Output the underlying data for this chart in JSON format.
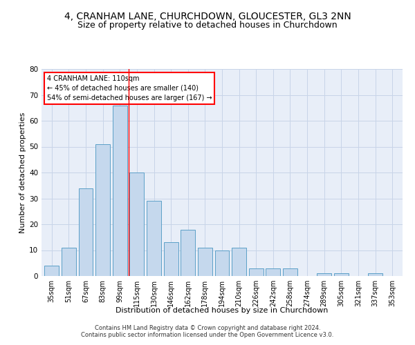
{
  "title": "4, CRANHAM LANE, CHURCHDOWN, GLOUCESTER, GL3 2NN",
  "subtitle": "Size of property relative to detached houses in Churchdown",
  "xlabel": "Distribution of detached houses by size in Churchdown",
  "ylabel": "Number of detached properties",
  "categories": [
    "35sqm",
    "51sqm",
    "67sqm",
    "83sqm",
    "99sqm",
    "115sqm",
    "130sqm",
    "146sqm",
    "162sqm",
    "178sqm",
    "194sqm",
    "210sqm",
    "226sqm",
    "242sqm",
    "258sqm",
    "274sqm",
    "289sqm",
    "305sqm",
    "321sqm",
    "337sqm",
    "353sqm"
  ],
  "values": [
    4,
    11,
    34,
    51,
    66,
    40,
    29,
    13,
    18,
    11,
    10,
    11,
    3,
    3,
    3,
    0,
    1,
    1,
    0,
    1,
    0
  ],
  "bar_color": "#c5d8ed",
  "bar_edge_color": "#5b9fc7",
  "red_line_x": 4.5,
  "annotation_lines": [
    "4 CRANHAM LANE: 110sqm",
    "← 45% of detached houses are smaller (140)",
    "54% of semi-detached houses are larger (167) →"
  ],
  "annotation_box_color": "white",
  "annotation_box_edge": "red",
  "ylim": [
    0,
    80
  ],
  "yticks": [
    0,
    10,
    20,
    30,
    40,
    50,
    60,
    70,
    80
  ],
  "grid_color": "#c8d4e8",
  "bg_color": "#e8eef8",
  "title_fontsize": 10,
  "subtitle_fontsize": 9,
  "axis_label_fontsize": 8,
  "tick_fontsize": 7,
  "footer_text": "Contains HM Land Registry data © Crown copyright and database right 2024.\nContains public sector information licensed under the Open Government Licence v3.0."
}
